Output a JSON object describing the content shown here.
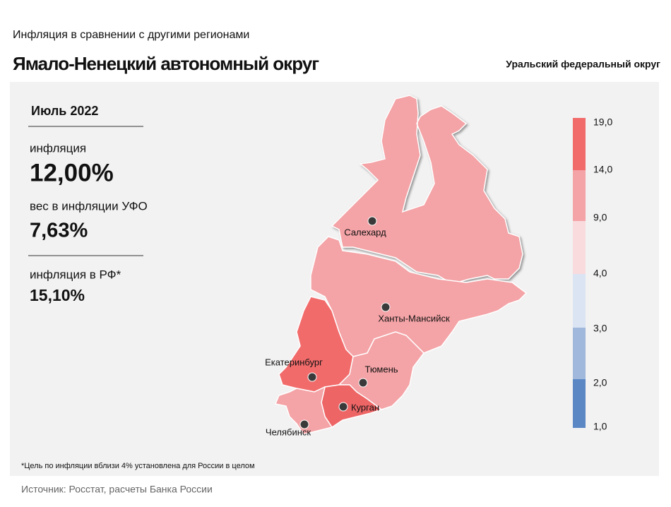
{
  "header": {
    "subtitle": "Инфляция  в сравнении  с другими  регионами",
    "title": "Ямало-Ненецкий автономный округ",
    "district": "Уральский федеральный округ"
  },
  "panel": {
    "period": "Июль 2022",
    "inflation_label": "инфляция",
    "inflation_value": "12,00%",
    "weight_label": "вес в инфляции  УФО",
    "weight_value": "7,63%",
    "rf_label": "инфляция  в РФ*",
    "rf_value": "15,10%"
  },
  "legend": {
    "ticks": [
      {
        "value": 19,
        "label": "19,0"
      },
      {
        "value": 14,
        "label": "14,0"
      },
      {
        "value": 9,
        "label": "9,0"
      },
      {
        "value": 4,
        "label": "4,0"
      },
      {
        "value": 3,
        "label": "3,0"
      },
      {
        "value": 2,
        "label": "2,0"
      },
      {
        "value": 1,
        "label": "1,0"
      }
    ],
    "colors": [
      "#f26b6b",
      "#f4a3a6",
      "#f9dbde",
      "#dbe4f3",
      "#9fb8dc",
      "#5b87c5"
    ]
  },
  "cities": [
    "Салехард",
    "Ханты-Мансийск",
    "Екатеринбург",
    "Тюмень",
    "Курган",
    "Челябинск"
  ],
  "footnote": "*Цель по инфляции вблизи 4% установлена для России в целом",
  "source": "Источник: Росстат, расчеты Банка России"
}
